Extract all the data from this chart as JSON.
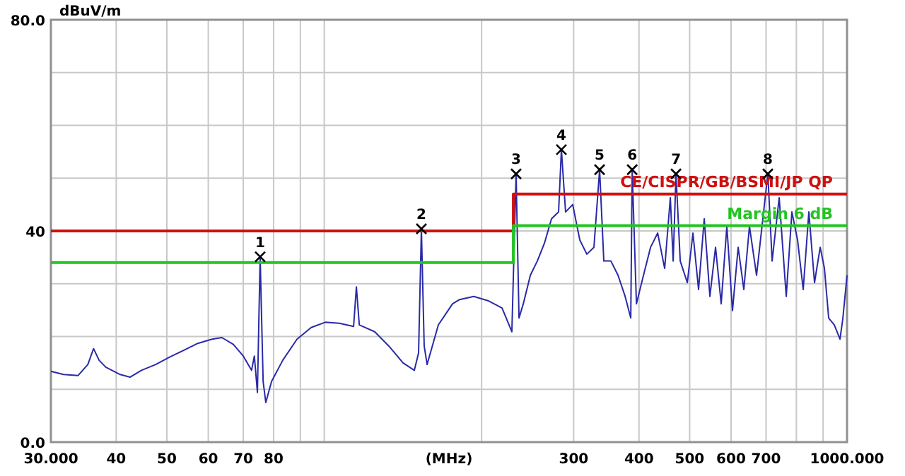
{
  "chart_data": {
    "type": "line",
    "xlabel": "(MHz)",
    "ylabel": "dBuV/m",
    "log": "x",
    "grid": true,
    "legend": false,
    "marker": "none",
    "line_style": "solid",
    "xlim": [
      30,
      1000
    ],
    "xticks": [
      {
        "value": 30,
        "label": "30.000"
      },
      40,
      50,
      60,
      70,
      80,
      {
        "value": 90,
        "label": null
      },
      {
        "value": 100,
        "label": null
      },
      {
        "value": 200,
        "label": null
      },
      300,
      400,
      500,
      600,
      700,
      {
        "value": 800,
        "label": null
      },
      {
        "value": 900,
        "label": null
      },
      {
        "value": 1000,
        "label": "1000.000"
      }
    ],
    "ylim": [
      0,
      80
    ],
    "yticks": [
      {
        "value": 0,
        "label": "0.0"
      },
      {
        "value": 10,
        "label": null
      },
      {
        "value": 20,
        "label": null
      },
      {
        "value": 30,
        "label": null
      },
      40,
      {
        "value": 50,
        "label": null
      },
      {
        "value": 60,
        "label": null
      },
      {
        "value": 70,
        "label": null
      },
      {
        "value": 80,
        "label": "80.0"
      }
    ],
    "series": [
      {
        "color": "#2a2aa8",
        "x": [
          30.0,
          31.7,
          33.8,
          35.3,
          36.2,
          37.1,
          38.2,
          40.7,
          42.5,
          44.7,
          47.6,
          50.6,
          53.9,
          57.3,
          61.0,
          63.7,
          67.0,
          70.0,
          72.6,
          73.5,
          74.5,
          75.4,
          76.4,
          77.3,
          79.3,
          83.3,
          88.7,
          94.4,
          100.4,
          106.9,
          113.8,
          115.2,
          116.7,
          124.9,
          132.9,
          141.5,
          148.7,
          151.5,
          153.4,
          155.3,
          157.3,
          165.3,
          173.8,
          176.0,
          181.5,
          193.2,
          205.6,
          218.8,
          225.7,
          228.5,
          232.8,
          235.8,
          240.3,
          247.9,
          255.6,
          263.8,
          272.1,
          280.7,
          284.2,
          289.5,
          298.7,
          308.2,
          317.9,
          328.0,
          336.3,
          342.6,
          353.5,
          364.7,
          376.3,
          385.8,
          388.2,
          395.5,
          408.0,
          420.9,
          434.3,
          447.9,
          459.2,
          465.0,
          470.8,
          479.7,
          494.9,
          507.3,
          520.0,
          533.2,
          546.6,
          560.4,
          574.5,
          589.0,
          603.8,
          619.1,
          634.7,
          650.7,
          671.3,
          692.5,
          705.6,
          719.0,
          741.7,
          765.1,
          784.4,
          804.2,
          824.5,
          845.3,
          866.6,
          888.5,
          905.3,
          922.4,
          945.6,
          969.4,
          981.5,
          1000
        ],
        "values": [
          13.4,
          12.8,
          12.6,
          14.7,
          17.7,
          15.5,
          14.2,
          12.8,
          12.3,
          13.6,
          14.7,
          16.1,
          17.4,
          18.7,
          19.5,
          19.8,
          18.5,
          16.3,
          13.6,
          16.3,
          9.4,
          35.1,
          11.5,
          7.5,
          11.5,
          15.5,
          19.5,
          21.7,
          22.7,
          22.5,
          21.9,
          29.4,
          22.2,
          20.9,
          18.2,
          15.0,
          13.6,
          16.9,
          40.4,
          18.2,
          14.7,
          22.2,
          25.4,
          26.2,
          27.0,
          27.6,
          26.8,
          25.4,
          22.2,
          20.9,
          50.8,
          23.5,
          26.2,
          31.6,
          34.3,
          37.7,
          42.3,
          43.6,
          55.4,
          43.6,
          45.0,
          38.3,
          35.6,
          36.9,
          51.6,
          34.3,
          34.3,
          31.6,
          27.6,
          23.5,
          51.6,
          26.2,
          31.6,
          36.9,
          39.6,
          32.9,
          46.3,
          34.3,
          50.8,
          34.3,
          30.2,
          39.6,
          28.9,
          42.3,
          27.6,
          36.9,
          26.2,
          40.9,
          24.9,
          36.9,
          28.9,
          40.9,
          31.6,
          43.6,
          50.8,
          34.3,
          46.3,
          27.6,
          43.6,
          38.3,
          28.9,
          43.6,
          30.2,
          36.9,
          32.9,
          23.5,
          22.2,
          19.5,
          23.3,
          31.6
        ]
      },
      {
        "name": "CE/CISPR/GB/BSMI/JP QP",
        "color": "#d01010",
        "x": [
          30,
          230,
          230,
          1000
        ],
        "values": [
          40,
          40,
          47,
          47
        ]
      },
      {
        "name": "Margin 6 dB",
        "color": "#22c422",
        "x": [
          30,
          230,
          230,
          1000
        ],
        "values": [
          34,
          34,
          41,
          41
        ]
      }
    ],
    "annotations": [
      {
        "text": "1",
        "x": 75.4,
        "y": 35.1
      },
      {
        "text": "2",
        "x": 153.4,
        "y": 40.4
      },
      {
        "text": "3",
        "x": 232.8,
        "y": 50.8
      },
      {
        "text": "4",
        "x": 284.2,
        "y": 55.4
      },
      {
        "text": "5",
        "x": 336.3,
        "y": 51.6
      },
      {
        "text": "6",
        "x": 388.2,
        "y": 51.6
      },
      {
        "text": "7",
        "x": 470.8,
        "y": 50.8
      },
      {
        "text": "8",
        "x": 705.6,
        "y": 50.8
      }
    ]
  }
}
